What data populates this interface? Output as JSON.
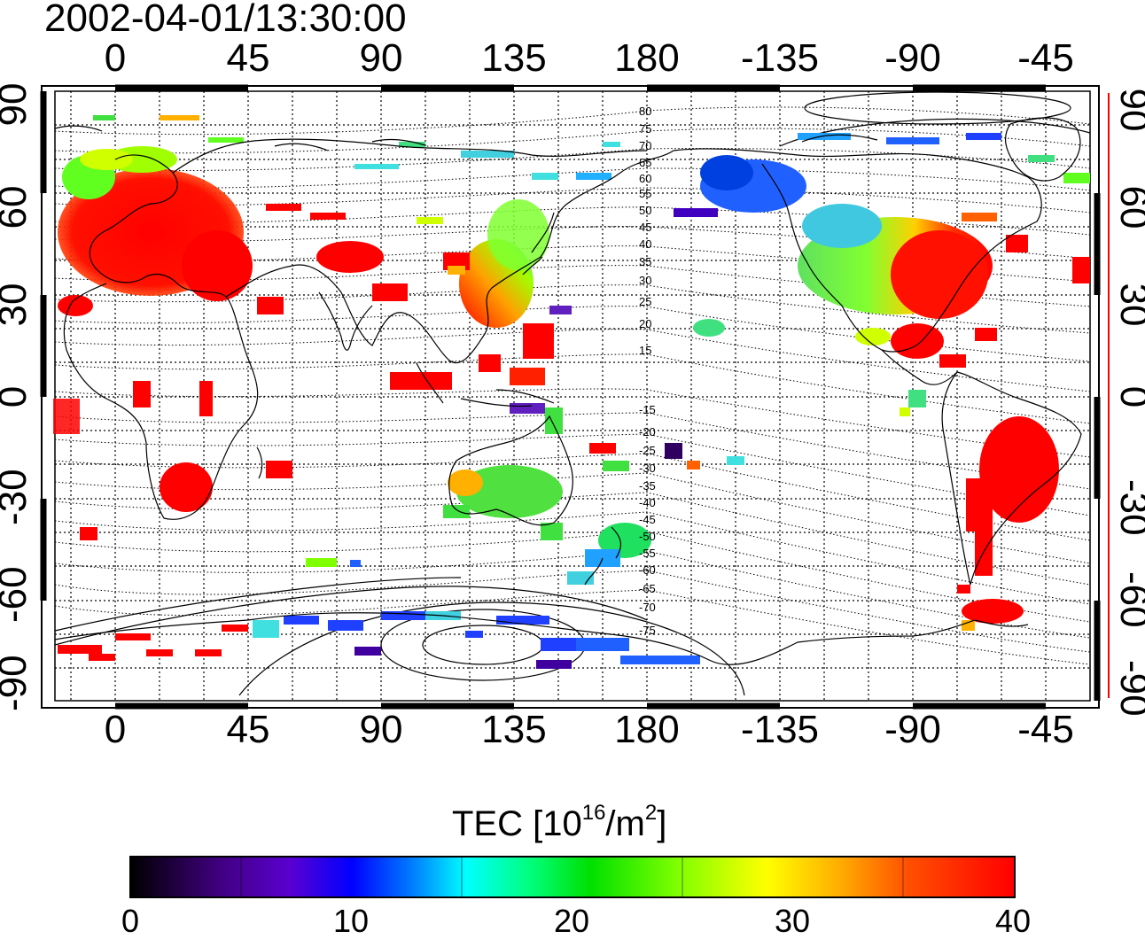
{
  "title": "2002-04-01/13:30:00",
  "x_axis": {
    "top_ticks": [
      "0",
      "45",
      "90",
      "135",
      "180",
      "-135",
      "-90",
      "-45"
    ],
    "bottom_ticks": [
      "0",
      "45",
      "90",
      "135",
      "180",
      "-135",
      "-90",
      "-45"
    ]
  },
  "y_axis": {
    "left_ticks": [
      "90",
      "60",
      "30",
      "0",
      "-30",
      "-60",
      "-90"
    ],
    "right_ticks": [
      "90",
      "60",
      "30",
      "0",
      "-30",
      "-60",
      "-90"
    ]
  },
  "contour_labels": {
    "north": [
      "80",
      "75",
      "70",
      "65",
      "60",
      "55",
      "50",
      "45",
      "40",
      "35",
      "30",
      "25",
      "20",
      "15"
    ],
    "south": [
      "-15",
      "-20",
      "-25",
      "-30",
      "-35",
      "-40",
      "-45",
      "-50",
      "-55",
      "-60",
      "-65",
      "-70",
      "-75"
    ]
  },
  "colorbar": {
    "title_main": "TEC  [10",
    "title_exp1": "16",
    "title_mid": "/m",
    "title_exp2": "2",
    "title_end": "]",
    "ticks": [
      "0",
      "10",
      "20",
      "30",
      "40"
    ],
    "range": [
      0,
      40
    ],
    "colors": [
      "#000000",
      "#0000ff",
      "#00ffff",
      "#00e000",
      "#ffff00",
      "#ff0000"
    ]
  },
  "right_axis_line_color": "#ff0000"
}
